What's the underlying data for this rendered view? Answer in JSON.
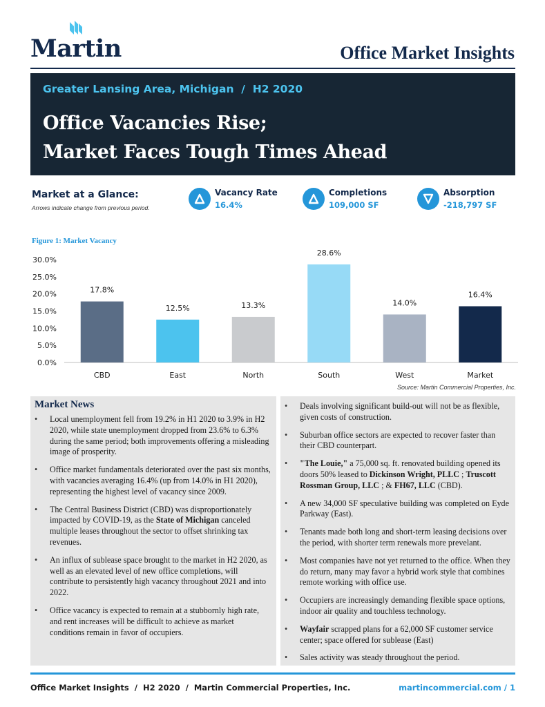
{
  "header": {
    "logo_text": "Martin",
    "report_title": "Office Market Insights"
  },
  "banner": {
    "subtitle": "Greater Lansing Area, Michigan  /  H2 2020",
    "headline_line1": "Office Vacancies Rise;",
    "headline_line2": "Market Faces Tough Times Ahead"
  },
  "glance": {
    "title": "Market at a Glance:",
    "note": "Arrows indicate change from previous period.",
    "stats": [
      {
        "label": "Vacancy Rate",
        "value": "16.4%",
        "direction": "up"
      },
      {
        "label": "Completions",
        "value": "109,000 SF",
        "direction": "up"
      },
      {
        "label": "Absorption",
        "value": "-218,797 SF",
        "direction": "down"
      }
    ]
  },
  "colors": {
    "navy": "#13294b",
    "accent_blue": "#2496d9",
    "banner_bg": "#172634",
    "banner_sub": "#4cc3ee"
  },
  "figure": {
    "title": "Figure 1: Market Vacancy",
    "source": "Source: Martin Commercial Properties, Inc."
  },
  "chart_data": {
    "type": "bar",
    "categories": [
      "CBD",
      "East",
      "North",
      "South",
      "West",
      "Market"
    ],
    "values": [
      17.8,
      12.5,
      13.3,
      28.6,
      14.0,
      16.4
    ],
    "data_labels": [
      "17.8%",
      "12.5%",
      "13.3%",
      "28.6%",
      "14.0%",
      "16.4%"
    ],
    "bar_colors": [
      "#5a6d86",
      "#4cc3ee",
      "#c9cbce",
      "#97daf6",
      "#a9b3c3",
      "#13294b"
    ],
    "ylim": [
      0,
      30
    ],
    "yticks": [
      "0.0%",
      "5.0%",
      "10.0%",
      "15.0%",
      "20.0%",
      "25.0%",
      "30.0%"
    ],
    "grid": false,
    "title": "",
    "xlabel": "",
    "ylabel": ""
  },
  "news": {
    "title": "Market News",
    "left": [
      [
        {
          "t": "Local unemployment fell from 19.2% in H1 2020 to 3.9% in H2 2020, while state unemployment dropped from 23.6% to 6.3% during the same period; both improvements offering a misleading image of prosperity."
        }
      ],
      [
        {
          "t": "Office market fundamentals deteriorated over the past six months, with vacancies averaging 16.4% (up from 14.0% in H1 2020), representing the highest level of vacancy since 2009."
        }
      ],
      [
        {
          "t": "The Central Business District (CBD) was disproportionately impacted by COVID-19, as the "
        },
        {
          "t": "State of Michigan",
          "b": true
        },
        {
          "t": " canceled multiple leases throughout the sector to offset shrinking tax revenues."
        }
      ],
      [
        {
          "t": "An influx of sublease space brought to the market in H2 2020, as well as an elevated level of new office completions, will contribute to persistently high vacancy throughout 2021 and into 2022."
        }
      ],
      [
        {
          "t": "Office vacancy is expected to remain at a stubbornly high rate, and rent increases will be difficult to achieve as market conditions remain in favor of occupiers."
        }
      ]
    ],
    "right": [
      [
        {
          "t": "Deals involving significant build-out will not be as flexible, given costs of construction."
        }
      ],
      [
        {
          "t": "Suburban office sectors are expected to recover faster than their CBD counterpart."
        }
      ],
      [
        {
          "t": "\"The Louie,\"",
          "b": true
        },
        {
          "t": " a 75,000 sq. ft. renovated building opened its doors 50% leased to "
        },
        {
          "t": "Dickinson Wright, PLLC",
          "b": true
        },
        {
          "t": " ; "
        },
        {
          "t": "Truscott Rossman Group, LLC",
          "b": true
        },
        {
          "t": " ; & "
        },
        {
          "t": "FH67, LLC",
          "b": true
        },
        {
          "t": " (CBD)."
        }
      ],
      [
        {
          "t": "A new 34,000 SF speculative building was completed on Eyde Parkway (East)."
        }
      ],
      [
        {
          "t": "Tenants made both long and short-term leasing decisions over the period, with shorter term renewals more prevelant."
        }
      ],
      [
        {
          "t": "Most companies have not yet returned to the office. When they do return, many may favor a hybrid work style that combines remote working with office use."
        }
      ],
      [
        {
          "t": "Occupiers are increasingly demanding flexible space options, indoor air quality and touchless technology."
        }
      ],
      [
        {
          "t": "Wayfair",
          "b": true
        },
        {
          "t": " scrapped plans for a 62,000 SF customer service center; space offered for sublease (East)"
        }
      ],
      [
        {
          "t": "Sales activity was steady throughout the period."
        }
      ]
    ]
  },
  "footer": {
    "left": "Office Market Insights  /  H2 2020  /  Martin Commercial Properties, Inc.",
    "right": "martincommercial.com  /  1"
  }
}
